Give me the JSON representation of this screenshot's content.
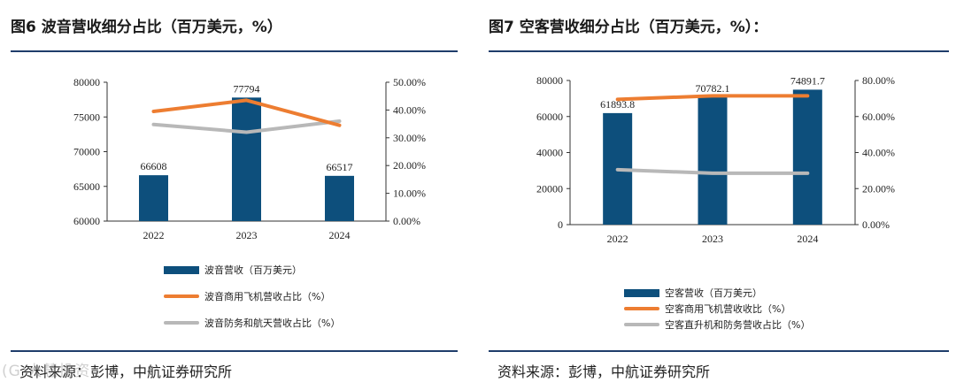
{
  "figures": [
    {
      "title": "图6  波音营收细分占比（百万美元，%）",
      "source": "资料来源：彭博，中航证券研究所",
      "legend": {
        "bar": "波音营收（百万美元）",
        "line1": "波音商用飞机营收占比（%）",
        "line2": "波音防务和航天营收占比（%）"
      },
      "colors": {
        "bar": "#0d4f7c",
        "line1": "#ed7d31",
        "line2": "#b8b8b8"
      },
      "chart_data": {
        "type": "bar+line",
        "categories": [
          "2022",
          "2023",
          "2024"
        ],
        "bar_series": {
          "name": "波音营收（百万美元）",
          "values": [
            66608,
            77794,
            66517
          ],
          "labels": [
            "66608",
            "77794",
            "66517"
          ]
        },
        "line_series": [
          {
            "name": "波音商用飞机营收占比（%）",
            "values": [
              39.5,
              43.5,
              34.5
            ]
          },
          {
            "name": "波音防务和航天营收占比（%）",
            "values": [
              34.8,
              32.0,
              36.0
            ]
          }
        ],
        "y_left": {
          "min": 60000,
          "max": 80000,
          "ticks": [
            "60000",
            "65000",
            "70000",
            "75000",
            "80000"
          ]
        },
        "y_right": {
          "min": 0,
          "max": 50,
          "ticks": [
            "0.00%",
            "10.00%",
            "20.00%",
            "30.00%",
            "40.00%",
            "50.00%"
          ]
        }
      }
    },
    {
      "title": "图7  空客营收细分占比（百万美元，%）：",
      "source": "资料来源：彭博，中航证券研究所",
      "legend": {
        "bar": "空客营收（百万美元）",
        "line1": "空客商用飞机营收收比（%）",
        "line2": "空客直升机和防务营收占比（%）"
      },
      "colors": {
        "bar": "#0d4f7c",
        "line1": "#ed7d31",
        "line2": "#b8b8b8"
      },
      "chart_data": {
        "type": "bar+line",
        "categories": [
          "2022",
          "2023",
          "2024"
        ],
        "bar_series": {
          "name": "空客营收（百万美元）",
          "values": [
            61893.8,
            70782.1,
            74891.7
          ],
          "labels": [
            "61893.8",
            "70782.1",
            "74891.7"
          ]
        },
        "line_series": [
          {
            "name": "空客商用飞机营收收比（%）",
            "values": [
              69.5,
              71.5,
              71.5
            ]
          },
          {
            "name": "空客直升机和防务营收占比（%）",
            "values": [
              30.5,
              28.5,
              28.5
            ]
          }
        ],
        "y_left": {
          "min": 0,
          "max": 80000,
          "ticks": [
            "0",
            "20000",
            "40000",
            "60000",
            "80000"
          ]
        },
        "y_right": {
          "min": 0,
          "max": 80,
          "ticks": [
            "0.00%",
            "20.00%",
            "40.00%",
            "60.00%",
            "80.00%"
          ]
        }
      }
    }
  ],
  "watermark": "(G 大慧投资"
}
